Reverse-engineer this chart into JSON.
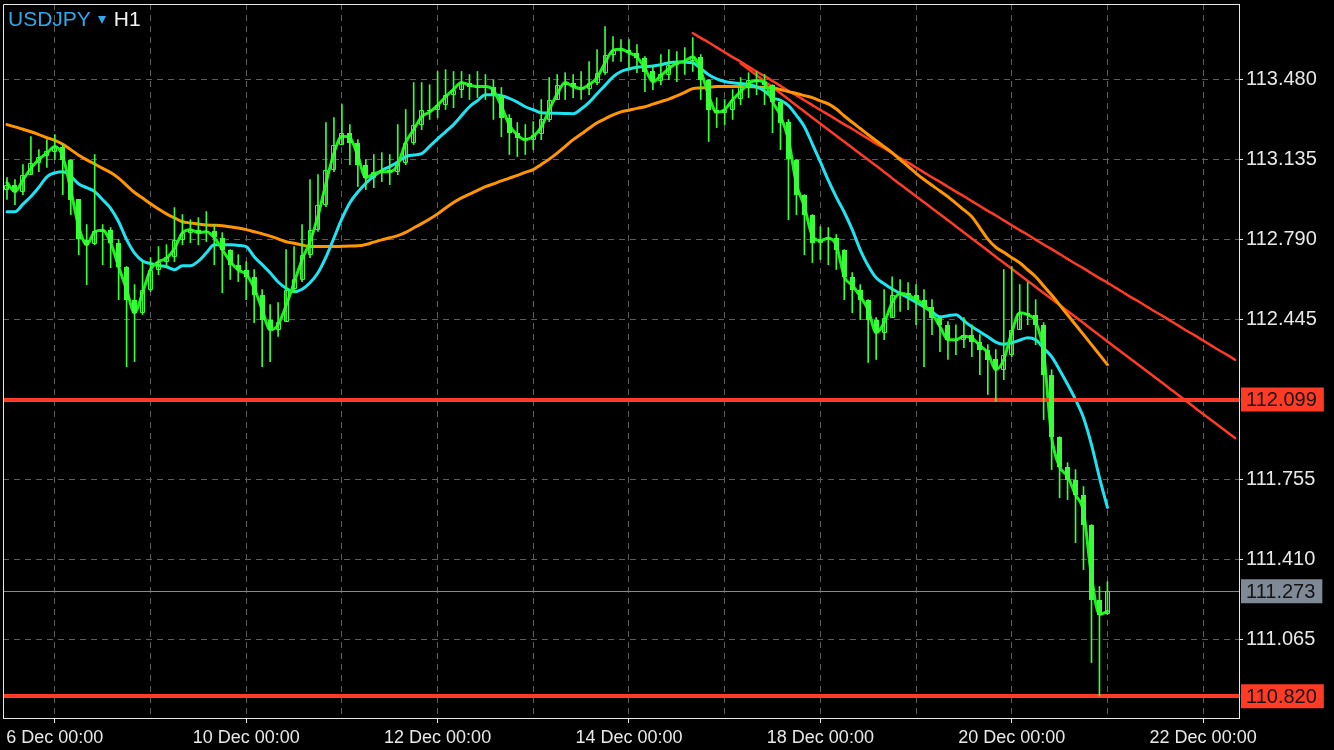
{
  "chart_data": {
    "type": "candlestick",
    "title": "USDJPY",
    "subtitle": "H1",
    "color": "#35ff35",
    "categories": [
      null,
      null,
      null,
      null,
      null,
      null,
      "6 Dec 00:00",
      null,
      null,
      null,
      null,
      null,
      null,
      null,
      null,
      null,
      null,
      null,
      null,
      null,
      null,
      null,
      null,
      null,
      null,
      null,
      null,
      null,
      null,
      null,
      "10 Dec 00:00",
      null,
      null,
      null,
      null,
      null,
      null,
      null,
      null,
      null,
      null,
      null,
      null,
      null,
      null,
      null,
      null,
      null,
      null,
      null,
      null,
      null,
      null,
      null,
      "12 Dec 00:00",
      null,
      null,
      null,
      null,
      null,
      null,
      null,
      null,
      null,
      null,
      null,
      null,
      null,
      null,
      null,
      null,
      null,
      null,
      null,
      null,
      null,
      null,
      null,
      "14 Dec 00:00",
      null,
      null,
      null,
      null,
      null,
      null,
      null,
      null,
      null,
      null,
      null,
      null,
      null,
      null,
      null,
      null,
      null,
      null,
      null,
      null,
      null,
      null,
      null,
      "18 Dec 00:00",
      null,
      null,
      null,
      null,
      null,
      null,
      null,
      null,
      null,
      null,
      null,
      null,
      null,
      null,
      null,
      null,
      null,
      null,
      null,
      null,
      null,
      null,
      null,
      "20 Dec 00:00",
      null,
      null,
      null,
      null,
      null,
      null,
      null,
      null,
      null,
      null,
      null,
      null,
      null,
      null,
      null,
      null,
      null,
      null,
      null,
      null,
      null,
      null,
      null,
      "22 Dec 00:00",
      null,
      null,
      null,
      null
    ],
    "ohlc": [
      [
        113.005,
        113.056,
        112.962,
        113.026
      ],
      [
        113.026,
        113.048,
        112.94,
        112.996
      ],
      [
        112.996,
        113.112,
        112.983,
        113.069
      ],
      [
        113.069,
        113.233,
        113.069,
        113.121
      ],
      [
        113.121,
        113.177,
        113.082,
        113.147
      ],
      [
        113.147,
        113.22,
        113.1,
        113.169
      ],
      [
        113.169,
        113.242,
        113.134,
        113.19
      ],
      [
        113.19,
        113.199,
        112.983,
        113.134
      ],
      [
        113.134,
        113.134,
        112.897,
        112.962
      ],
      [
        112.962,
        112.962,
        112.724,
        112.789
      ],
      [
        112.789,
        112.854,
        112.595,
        112.767
      ],
      [
        112.767,
        113.156,
        112.767,
        112.824
      ],
      [
        112.824,
        112.854,
        112.681,
        112.832
      ],
      [
        112.832,
        112.841,
        112.668,
        112.776
      ],
      [
        112.776,
        112.789,
        112.53,
        112.673
      ],
      [
        112.673,
        112.673,
        112.241,
        112.53
      ],
      [
        112.53,
        112.595,
        112.263,
        112.474
      ],
      [
        112.474,
        112.694,
        112.466,
        112.573
      ],
      [
        112.573,
        112.711,
        112.565,
        112.66
      ],
      [
        112.66,
        112.759,
        112.638,
        112.694
      ],
      [
        112.694,
        112.767,
        112.668,
        112.716
      ],
      [
        112.716,
        112.927,
        112.694,
        112.789
      ],
      [
        112.789,
        112.897,
        112.767,
        112.819
      ],
      [
        112.819,
        112.875,
        112.776,
        112.832
      ],
      [
        112.832,
        112.884,
        112.767,
        112.819
      ],
      [
        112.819,
        112.91,
        112.78,
        112.824
      ],
      [
        112.824,
        112.854,
        112.681,
        112.798
      ],
      [
        112.798,
        112.819,
        112.56,
        112.746
      ],
      [
        112.746,
        112.746,
        112.617,
        112.681
      ],
      [
        112.681,
        112.724,
        112.608,
        112.66
      ],
      [
        112.66,
        112.694,
        112.53,
        112.629
      ],
      [
        112.629,
        112.66,
        112.431,
        112.552
      ],
      [
        112.552,
        112.573,
        112.241,
        112.444
      ],
      [
        112.444,
        112.509,
        112.263,
        112.401
      ],
      [
        112.401,
        112.517,
        112.371,
        112.435
      ],
      [
        112.435,
        112.746,
        112.435,
        112.573
      ],
      [
        112.573,
        112.759,
        112.56,
        112.617
      ],
      [
        112.617,
        112.854,
        112.608,
        112.724
      ],
      [
        112.724,
        113.048,
        112.711,
        112.832
      ],
      [
        112.832,
        113.069,
        112.824,
        112.94
      ],
      [
        112.94,
        113.294,
        112.931,
        113.091
      ],
      [
        113.091,
        113.315,
        113.082,
        113.199
      ],
      [
        113.199,
        113.371,
        113.199,
        113.25
      ],
      [
        113.25,
        113.285,
        113.112,
        113.207
      ],
      [
        113.207,
        113.22,
        113.018,
        113.112
      ],
      [
        113.112,
        113.134,
        113.005,
        113.056
      ],
      [
        113.056,
        113.156,
        113.013,
        113.082
      ],
      [
        113.082,
        113.164,
        113.039,
        113.091
      ],
      [
        113.091,
        113.156,
        113.026,
        113.082
      ],
      [
        113.082,
        113.285,
        113.069,
        113.121
      ],
      [
        113.121,
        113.35,
        113.112,
        113.207
      ],
      [
        113.207,
        113.466,
        113.199,
        113.285
      ],
      [
        113.285,
        113.466,
        113.263,
        113.35
      ],
      [
        113.35,
        113.457,
        113.307,
        113.35
      ],
      [
        113.35,
        113.514,
        113.315,
        113.371
      ],
      [
        113.371,
        113.522,
        113.35,
        113.414
      ],
      [
        113.414,
        113.514,
        113.358,
        113.436
      ],
      [
        113.436,
        113.514,
        113.401,
        113.466
      ],
      [
        113.466,
        113.501,
        113.393,
        113.449
      ],
      [
        113.449,
        113.514,
        113.401,
        113.449
      ],
      [
        113.449,
        113.501,
        113.393,
        113.449
      ],
      [
        113.449,
        113.479,
        113.307,
        113.414
      ],
      [
        113.414,
        113.445,
        113.233,
        113.315
      ],
      [
        113.315,
        113.328,
        113.156,
        113.25
      ],
      [
        113.25,
        113.294,
        113.147,
        113.229
      ],
      [
        113.229,
        113.285,
        113.156,
        113.22
      ],
      [
        113.22,
        113.298,
        113.177,
        113.242
      ],
      [
        113.242,
        113.393,
        113.22,
        113.307
      ],
      [
        113.307,
        113.488,
        113.298,
        113.393
      ],
      [
        113.393,
        113.501,
        113.393,
        113.457
      ],
      [
        113.457,
        113.509,
        113.393,
        113.466
      ],
      [
        113.466,
        113.501,
        113.401,
        113.449
      ],
      [
        113.449,
        113.514,
        113.393,
        113.44
      ],
      [
        113.44,
        113.557,
        113.414,
        113.466
      ],
      [
        113.466,
        113.608,
        113.457,
        113.509
      ],
      [
        113.509,
        113.708,
        113.501,
        113.587
      ],
      [
        113.587,
        113.664,
        113.557,
        113.608
      ],
      [
        113.608,
        113.652,
        113.557,
        113.608
      ],
      [
        113.608,
        113.652,
        113.522,
        113.595
      ],
      [
        113.595,
        113.63,
        113.509,
        113.574
      ],
      [
        113.574,
        113.578,
        113.427,
        113.514
      ],
      [
        113.514,
        113.535,
        113.436,
        113.47
      ],
      [
        113.47,
        113.587,
        113.457,
        113.501
      ],
      [
        113.501,
        113.608,
        113.479,
        113.544
      ],
      [
        113.544,
        113.6,
        113.47,
        113.557
      ],
      [
        113.557,
        113.617,
        113.501,
        113.561
      ],
      [
        113.561,
        113.66,
        113.514,
        113.578
      ],
      [
        113.578,
        113.587,
        113.393,
        113.479
      ],
      [
        113.479,
        113.479,
        113.212,
        113.35
      ],
      [
        113.35,
        113.401,
        113.272,
        113.337
      ],
      [
        113.337,
        113.393,
        113.285,
        113.35
      ],
      [
        113.35,
        113.436,
        113.307,
        113.393
      ],
      [
        113.393,
        113.488,
        113.371,
        113.445
      ],
      [
        113.445,
        113.509,
        113.401,
        113.479
      ],
      [
        113.479,
        113.514,
        113.414,
        113.47
      ],
      [
        113.47,
        113.501,
        113.371,
        113.457
      ],
      [
        113.457,
        113.457,
        113.25,
        113.384
      ],
      [
        113.384,
        113.393,
        113.177,
        113.294
      ],
      [
        113.294,
        113.307,
        112.875,
        113.134
      ],
      [
        113.134,
        113.134,
        112.897,
        112.983
      ],
      [
        112.983,
        112.983,
        112.724,
        112.897
      ],
      [
        112.897,
        112.897,
        112.69,
        112.776
      ],
      [
        112.776,
        112.845,
        112.703,
        112.789
      ],
      [
        112.789,
        112.841,
        112.681,
        112.798
      ],
      [
        112.798,
        112.811,
        112.66,
        112.746
      ],
      [
        112.746,
        112.746,
        112.53,
        112.629
      ],
      [
        112.629,
        112.647,
        112.474,
        112.573
      ],
      [
        112.573,
        112.595,
        112.444,
        112.53
      ],
      [
        112.53,
        112.53,
        112.259,
        112.444
      ],
      [
        112.444,
        112.453,
        112.272,
        112.388
      ],
      [
        112.388,
        112.573,
        112.358,
        112.453
      ],
      [
        112.453,
        112.629,
        112.453,
        112.552
      ],
      [
        112.552,
        112.617,
        112.479,
        112.56
      ],
      [
        112.56,
        112.604,
        112.487,
        112.552
      ],
      [
        112.552,
        112.595,
        112.422,
        112.53
      ],
      [
        112.53,
        112.573,
        112.241,
        112.5
      ],
      [
        112.5,
        112.53,
        112.379,
        112.453
      ],
      [
        112.453,
        112.453,
        112.306,
        112.422
      ],
      [
        112.422,
        112.435,
        112.272,
        112.358
      ],
      [
        112.358,
        112.422,
        112.293,
        112.358
      ],
      [
        112.358,
        112.453,
        112.323,
        112.379
      ],
      [
        112.379,
        112.422,
        112.284,
        112.349
      ],
      [
        112.349,
        112.379,
        112.207,
        112.315
      ],
      [
        112.315,
        112.336,
        112.121,
        112.272
      ],
      [
        112.272,
        112.315,
        112.09,
        112.228
      ],
      [
        112.228,
        112.66,
        112.185,
        112.293
      ],
      [
        112.293,
        112.673,
        112.284,
        112.401
      ],
      [
        112.401,
        112.595,
        112.401,
        112.474
      ],
      [
        112.474,
        112.604,
        112.422,
        112.466
      ],
      [
        112.466,
        112.53,
        112.336,
        112.422
      ],
      [
        112.422,
        112.431,
        112.013,
        112.207
      ],
      [
        112.207,
        112.228,
        111.797,
        111.939
      ],
      [
        111.939,
        111.939,
        111.676,
        111.81
      ],
      [
        111.81,
        111.827,
        111.668,
        111.754
      ],
      [
        111.754,
        111.797,
        111.482,
        111.689
      ],
      [
        111.689,
        111.724,
        111.366,
        111.56
      ],
      [
        111.56,
        111.56,
        110.965,
        111.236
      ],
      [
        111.236,
        111.293,
        110.821,
        111.172
      ],
      [
        111.172,
        111.314,
        111.172,
        111.273
      ],
      null,
      null,
      null,
      null,
      null,
      null,
      null,
      null,
      null,
      null,
      null,
      null,
      null,
      null,
      null,
      null
    ],
    "series": [
      {
        "type": "line",
        "color": "#22ee22",
        "values": [
          113.035,
          112.996,
          113.046,
          113.096,
          113.135,
          113.162,
          113.19,
          113.147,
          113.003,
          112.845,
          112.767,
          112.823,
          112.829,
          112.776,
          112.672,
          112.573,
          112.474,
          112.56,
          112.659,
          112.694,
          112.708,
          112.75,
          112.819,
          112.832,
          112.819,
          112.823,
          112.797,
          112.746,
          112.694,
          112.658,
          112.639,
          112.58,
          112.487,
          112.4,
          112.422,
          112.505,
          112.603,
          112.702,
          112.78,
          112.89,
          113.032,
          113.162,
          113.235,
          113.229,
          113.149,
          113.056,
          113.073,
          113.082,
          113.082,
          113.112,
          113.207,
          113.263,
          113.319,
          113.339,
          113.368,
          113.405,
          113.437,
          113.466,
          113.455,
          113.449,
          113.449,
          113.432,
          113.365,
          113.283,
          113.24,
          113.22,
          113.234,
          113.274,
          113.349,
          113.417,
          113.466,
          113.449,
          113.44,
          113.457,
          113.488,
          113.552,
          113.606,
          113.61,
          113.595,
          113.576,
          113.528,
          113.47,
          113.496,
          113.526,
          113.55,
          113.559,
          113.578,
          113.518,
          113.41,
          113.338,
          113.349,
          113.392,
          113.427,
          113.462,
          113.475,
          113.466,
          113.384,
          113.323,
          113.22,
          113.029,
          112.931,
          112.804,
          112.785,
          112.795,
          112.765,
          112.629,
          112.592,
          112.544,
          112.486,
          112.388,
          112.431,
          112.517,
          112.557,
          112.551,
          112.53,
          112.509,
          112.471,
          112.414,
          112.357,
          112.357,
          112.372,
          112.364,
          112.332,
          112.301,
          112.228,
          112.271,
          112.388,
          112.474,
          112.465,
          112.435,
          112.301,
          111.939,
          111.81,
          111.768,
          111.688,
          111.615,
          111.336,
          111.173,
          111.186,
          null,
          null,
          null,
          null,
          null,
          null,
          null,
          null,
          null,
          null,
          null,
          null,
          null,
          null,
          null,
          null
        ]
      },
      {
        "type": "line",
        "color": "#1de4f2",
        "values": [
          112.909,
          112.909,
          112.942,
          112.975,
          113.015,
          113.06,
          113.077,
          113.082,
          113.062,
          113.029,
          113.013,
          112.996,
          112.961,
          112.924,
          112.866,
          112.789,
          112.731,
          112.697,
          112.686,
          112.677,
          112.672,
          112.659,
          112.676,
          112.676,
          112.696,
          112.732,
          112.767,
          112.767,
          112.767,
          112.764,
          112.759,
          112.715,
          112.681,
          112.646,
          112.606,
          112.579,
          112.564,
          112.575,
          112.603,
          112.646,
          112.713,
          112.796,
          112.879,
          112.948,
          112.994,
          113.032,
          113.063,
          113.087,
          113.104,
          113.124,
          113.147,
          113.154,
          113.16,
          113.191,
          113.223,
          113.254,
          113.285,
          113.324,
          113.362,
          113.388,
          113.414,
          113.414,
          113.409,
          113.398,
          113.382,
          113.362,
          113.349,
          113.336,
          113.335,
          113.334,
          113.333,
          113.332,
          113.352,
          113.381,
          113.418,
          113.454,
          113.491,
          113.514,
          113.525,
          113.532,
          113.535,
          113.538,
          113.543,
          113.552,
          113.555,
          113.554,
          113.552,
          113.526,
          113.5,
          113.482,
          113.471,
          113.465,
          113.462,
          113.457,
          113.448,
          113.43,
          113.401,
          113.39,
          113.367,
          113.325,
          113.276,
          113.201,
          113.124,
          113.044,
          112.972,
          112.907,
          112.832,
          112.745,
          112.676,
          112.624,
          112.599,
          112.576,
          112.557,
          112.538,
          112.519,
          112.499,
          112.478,
          112.456,
          112.461,
          112.465,
          112.439,
          112.413,
          112.392,
          112.37,
          112.347,
          112.338,
          112.344,
          112.355,
          112.366,
          112.357,
          112.321,
          112.284,
          112.227,
          112.165,
          112.099,
          112.021,
          111.905,
          111.763,
          111.634,
          null,
          null,
          null,
          null,
          null,
          null,
          null,
          null,
          null,
          null,
          null,
          null,
          null,
          null,
          null,
          null
        ]
      },
      {
        "type": "line",
        "color": "#ff9500",
        "values": [
          113.285,
          113.275,
          113.265,
          113.254,
          113.242,
          113.229,
          113.217,
          113.2,
          113.177,
          113.153,
          113.133,
          113.115,
          113.096,
          113.078,
          113.054,
          113.023,
          112.992,
          112.968,
          112.944,
          112.921,
          112.9,
          112.883,
          112.866,
          112.861,
          112.856,
          112.852,
          112.851,
          112.849,
          112.844,
          112.839,
          112.832,
          112.823,
          112.814,
          112.804,
          112.792,
          112.78,
          112.773,
          112.766,
          112.759,
          112.759,
          112.759,
          112.759,
          112.76,
          112.761,
          112.762,
          112.768,
          112.778,
          112.788,
          112.797,
          112.806,
          112.82,
          112.839,
          112.858,
          112.878,
          112.9,
          112.925,
          112.949,
          112.969,
          112.985,
          113.001,
          113.017,
          113.029,
          113.042,
          113.054,
          113.066,
          113.079,
          113.091,
          113.113,
          113.136,
          113.162,
          113.191,
          113.22,
          113.244,
          113.269,
          113.293,
          113.31,
          113.327,
          113.34,
          113.347,
          113.355,
          113.362,
          113.373,
          113.384,
          113.395,
          113.409,
          113.424,
          113.44,
          113.443,
          113.446,
          113.449,
          113.449,
          113.449,
          113.449,
          113.448,
          113.447,
          113.445,
          113.444,
          113.436,
          113.427,
          113.419,
          113.41,
          113.401,
          113.387,
          113.374,
          113.352,
          113.322,
          113.295,
          113.268,
          113.241,
          113.215,
          113.19,
          113.164,
          113.134,
          113.105,
          113.075,
          113.048,
          113.023,
          112.999,
          112.974,
          112.945,
          112.917,
          112.888,
          112.84,
          112.791,
          112.756,
          112.734,
          112.711,
          112.689,
          112.659,
          112.629,
          112.589,
          112.55,
          112.508,
          112.465,
          112.422,
          112.379,
          112.336,
          112.293,
          112.25,
          null,
          null,
          null,
          null,
          null,
          null,
          null,
          null,
          null,
          null,
          null,
          null,
          null,
          null,
          null,
          null
        ]
      },
      {
        "type": "line",
        "color": "#ff3b26",
        "values": [
          null,
          null,
          null,
          null,
          null,
          null,
          null,
          null,
          null,
          null,
          null,
          null,
          null,
          null,
          null,
          null,
          null,
          null,
          null,
          null,
          null,
          null,
          null,
          null,
          null,
          null,
          null,
          null,
          null,
          null,
          null,
          null,
          null,
          null,
          null,
          null,
          null,
          null,
          null,
          null,
          null,
          null,
          null,
          null,
          null,
          null,
          null,
          null,
          null,
          null,
          null,
          null,
          null,
          null,
          null,
          null,
          null,
          null,
          null,
          null,
          null,
          null,
          null,
          null,
          null,
          null,
          null,
          null,
          null,
          null,
          null,
          null,
          null,
          null,
          null,
          null,
          null,
          null,
          null,
          null,
          null,
          null,
          null,
          null,
          null,
          null,
          113.68,
          113.659,
          113.639,
          113.618,
          113.597,
          113.576,
          113.556,
          113.535,
          113.514,
          113.494,
          113.473,
          113.452,
          113.431,
          113.411,
          113.39,
          113.369,
          113.348,
          113.328,
          113.307,
          113.286,
          113.266,
          113.245,
          113.224,
          113.203,
          113.183,
          113.162,
          113.141,
          113.121,
          113.1,
          113.079,
          113.058,
          113.038,
          113.017,
          112.996,
          112.976,
          112.955,
          112.934,
          112.913,
          112.893,
          112.872,
          112.851,
          112.83,
          112.81,
          112.789,
          112.768,
          112.748,
          112.727,
          112.706,
          112.685,
          112.665,
          112.644,
          112.623,
          112.603,
          112.582,
          112.561,
          112.54,
          112.52,
          112.499,
          112.478,
          112.458,
          112.437,
          112.416,
          112.395,
          112.375,
          112.354,
          112.333,
          112.312,
          112.292,
          112.271
        ]
      },
      {
        "type": "line",
        "color": "#ff3b26",
        "values": [
          null,
          null,
          null,
          null,
          null,
          null,
          null,
          null,
          null,
          null,
          null,
          null,
          null,
          null,
          null,
          null,
          null,
          null,
          null,
          null,
          null,
          null,
          null,
          null,
          null,
          null,
          null,
          null,
          null,
          null,
          null,
          null,
          null,
          null,
          null,
          null,
          null,
          null,
          null,
          null,
          null,
          null,
          null,
          null,
          null,
          null,
          null,
          null,
          null,
          null,
          null,
          null,
          null,
          null,
          null,
          null,
          null,
          null,
          null,
          null,
          null,
          null,
          null,
          null,
          null,
          null,
          null,
          null,
          null,
          null,
          null,
          null,
          null,
          null,
          null,
          null,
          null,
          null,
          null,
          null,
          null,
          null,
          null,
          null,
          null,
          null,
          null,
          null,
          null,
          null,
          null,
          null,
          113.55,
          113.524,
          113.498,
          113.472,
          113.446,
          113.42,
          113.394,
          113.367,
          113.341,
          113.315,
          113.289,
          113.263,
          113.237,
          113.211,
          113.185,
          113.159,
          113.133,
          113.107,
          113.081,
          113.054,
          113.028,
          113.002,
          112.976,
          112.95,
          112.924,
          112.898,
          112.872,
          112.846,
          112.82,
          112.794,
          112.768,
          112.742,
          112.715,
          112.689,
          112.663,
          112.637,
          112.611,
          112.585,
          112.559,
          112.533,
          112.507,
          112.481,
          112.455,
          112.429,
          112.402,
          112.376,
          112.35,
          112.324,
          112.298,
          112.272,
          112.246,
          112.22,
          112.194,
          112.168,
          112.142,
          112.116,
          112.09,
          112.063,
          112.037,
          112.011,
          111.985,
          111.959,
          111.933
        ]
      }
    ],
    "ylim": [
      110.726,
      113.805
    ],
    "yticks": [
      {
        "value": 111.065,
        "label": "111.065"
      },
      {
        "value": 111.41,
        "label": "111.410"
      },
      {
        "value": 111.755,
        "label": "111.755"
      },
      {
        "value": 112.445,
        "label": "112.445"
      },
      {
        "value": 112.79,
        "label": "112.790"
      },
      {
        "value": 113.135,
        "label": "113.135"
      },
      {
        "value": 113.48,
        "label": "113.480"
      }
    ],
    "grid": true,
    "ref_lines": [
      {
        "axis": "y",
        "value": 112.099,
        "label": "112.099",
        "color": "#ff3b26"
      },
      {
        "axis": "y",
        "value": 110.82,
        "label": "110.820",
        "color": "#ff3b26"
      },
      {
        "axis": "y",
        "value": 111.273,
        "label": "111.273",
        "color": "#808a96"
      }
    ]
  }
}
